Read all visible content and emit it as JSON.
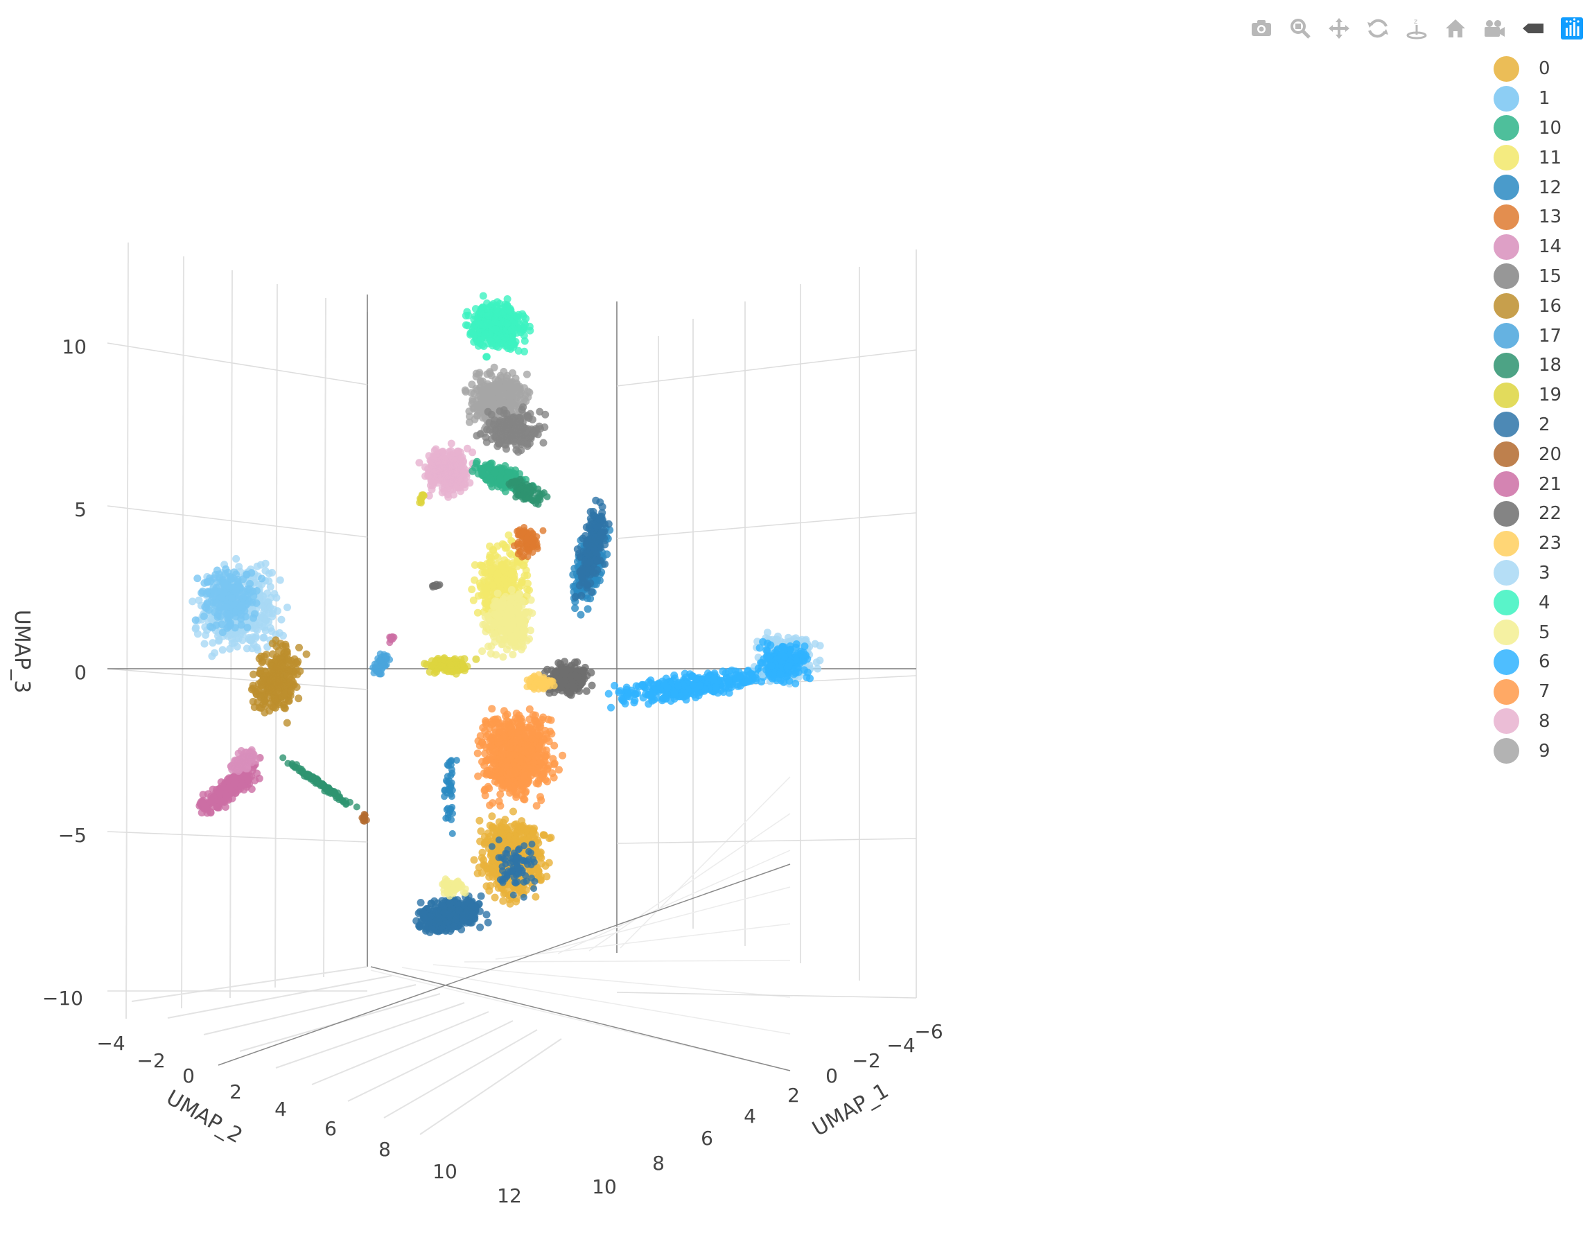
{
  "toolbar": {
    "buttons": [
      {
        "icon": "camera-icon",
        "label": "Download plot as a png"
      },
      {
        "icon": "zoom-icon",
        "label": "Zoom"
      },
      {
        "icon": "pan-icon",
        "label": "Pan"
      },
      {
        "icon": "orbit-rotation-icon",
        "label": "Orbital rotation"
      },
      {
        "icon": "turntable-rotation-icon",
        "label": "Turntable rotation"
      },
      {
        "icon": "home-icon",
        "label": "Reset camera to default"
      },
      {
        "icon": "camera-last-save-icon",
        "label": "Reset camera to last save"
      },
      {
        "icon": "hover-label-icon",
        "label": "Toggle show closest data on hover"
      },
      {
        "icon": "plotly-logo-icon",
        "label": "Produced with Plotly"
      }
    ]
  },
  "chart_data": {
    "type": "scatter",
    "dimensions": 3,
    "xlabel": "UMAP_1",
    "ylabel": "UMAP_2",
    "zlabel": "UMAP_3",
    "xlim": [
      -6,
      10
    ],
    "ylim": [
      -4,
      12
    ],
    "zlim": [
      -10,
      11
    ],
    "xticks": [
      "−6",
      "−4",
      "−2",
      "0",
      "2",
      "4",
      "6",
      "8",
      "10"
    ],
    "yticks": [
      "−4",
      "−2",
      "0",
      "2",
      "4",
      "6",
      "8",
      "10",
      "12"
    ],
    "zticks": [
      "10",
      "5",
      "0",
      "−5",
      "−10"
    ],
    "grid": true,
    "legend_position": "top-right",
    "series": [
      {
        "name": "0",
        "color": "#E8B13A",
        "center": [
          2.0,
          7.0,
          -5.0
        ]
      },
      {
        "name": "1",
        "color": "#79C6F2",
        "center": [
          -5.0,
          3.0,
          1.5
        ]
      },
      {
        "name": "10",
        "color": "#2FB48A",
        "center": [
          1.0,
          4.0,
          4.5
        ]
      },
      {
        "name": "11",
        "color": "#F2E86A",
        "center": [
          1.5,
          5.5,
          2.5
        ]
      },
      {
        "name": "12",
        "color": "#2A8AC2",
        "center": [
          0.5,
          6.5,
          2.0
        ]
      },
      {
        "name": "13",
        "color": "#DE7A30",
        "center": [
          1.0,
          5.0,
          4.0
        ]
      },
      {
        "name": "14",
        "color": "#D88FBC",
        "center": [
          6.0,
          -2.0,
          -3.5
        ]
      },
      {
        "name": "15",
        "color": "#858585",
        "center": [
          1.5,
          4.5,
          7.0
        ]
      },
      {
        "name": "16",
        "color": "#BD8E2D",
        "center": [
          5.5,
          -0.5,
          -0.5
        ]
      },
      {
        "name": "17",
        "color": "#4AA5DC",
        "center": [
          5.5,
          -1.0,
          3.0
        ]
      },
      {
        "name": "18",
        "color": "#2E9370",
        "center": [
          3.5,
          0.0,
          -3.5
        ]
      },
      {
        "name": "19",
        "color": "#DDD53F",
        "center": [
          3.0,
          2.0,
          4.0
        ]
      },
      {
        "name": "2",
        "color": "#2E74A8",
        "center": [
          4.5,
          5.5,
          -8.0
        ]
      },
      {
        "name": "20",
        "color": "#B36A2E",
        "center": [
          3.0,
          0.5,
          -4.5
        ]
      },
      {
        "name": "21",
        "color": "#CC6EA4",
        "center": [
          4.0,
          1.0,
          1.0
        ]
      },
      {
        "name": "22",
        "color": "#6E6E6E",
        "center": [
          0.0,
          6.5,
          0.5
        ]
      },
      {
        "name": "23",
        "color": "#FFCF5E",
        "center": [
          2.0,
          6.0,
          -1.0
        ]
      },
      {
        "name": "3",
        "color": "#A8D8F5",
        "center": [
          -5.5,
          3.5,
          1.0
        ]
      },
      {
        "name": "4",
        "color": "#3CF2C0",
        "center": [
          1.5,
          5.0,
          10.0
        ]
      },
      {
        "name": "5",
        "color": "#F3EE92",
        "center": [
          2.0,
          5.0,
          1.5
        ]
      },
      {
        "name": "6",
        "color": "#2FB3FF",
        "center": [
          -4.0,
          2.0,
          0.0
        ]
      },
      {
        "name": "7",
        "color": "#FF9A4A",
        "center": [
          2.0,
          6.0,
          -2.5
        ]
      },
      {
        "name": "8",
        "color": "#E7B1CF",
        "center": [
          2.5,
          4.0,
          6.0
        ]
      },
      {
        "name": "9",
        "color": "#A6A6A6",
        "center": [
          1.0,
          5.5,
          7.5
        ]
      }
    ]
  }
}
